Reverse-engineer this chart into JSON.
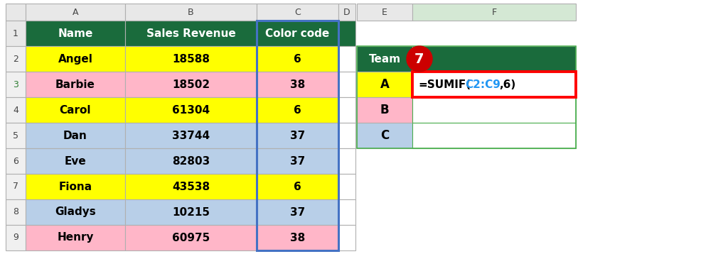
{
  "header_row": [
    "Name",
    "Sales Revenue",
    "Color code"
  ],
  "header_bg": "#1a6b3c",
  "header_fg": "#ffffff",
  "data_rows": [
    {
      "name": "Angel",
      "sales": "18588",
      "code": "6",
      "row_bg": "#ffff00"
    },
    {
      "name": "Barbie",
      "sales": "18502",
      "code": "38",
      "row_bg": "#ffb6c8"
    },
    {
      "name": "Carol",
      "sales": "61304",
      "code": "6",
      "row_bg": "#ffff00"
    },
    {
      "name": "Dan",
      "sales": "33744",
      "code": "37",
      "row_bg": "#b8cfe8"
    },
    {
      "name": "Eve",
      "sales": "82803",
      "code": "37",
      "row_bg": "#b8cfe8"
    },
    {
      "name": "Fiona",
      "sales": "43538",
      "code": "6",
      "row_bg": "#ffff00"
    },
    {
      "name": "Gladys",
      "sales": "10215",
      "code": "37",
      "row_bg": "#b8cfe8"
    },
    {
      "name": "Henry",
      "sales": "60975",
      "code": "38",
      "row_bg": "#ffb6c8"
    }
  ],
  "side_table_header": "Team",
  "side_table_header_bg": "#1a6b3c",
  "side_table_header_fg": "#ffffff",
  "side_rows": [
    {
      "label": "A",
      "bg": "#ffff00"
    },
    {
      "label": "B",
      "bg": "#ffb6c8"
    },
    {
      "label": "C",
      "bg": "#b8cfe8"
    }
  ],
  "col_letters_bg": "#e8e8e8",
  "col_f_selected_bg": "#d4e8d4",
  "row_num_bg": "#f0f0f0",
  "grid_color": "#b0b0b0",
  "green_border": "#4caf50",
  "blue_border": "#4472c4",
  "red_border": "#ff0000",
  "page_bg": "#ffffff",
  "formula_parts": [
    {
      "text": "=SUMIF(",
      "color": "#000000"
    },
    {
      "text": "C2:C9",
      "color": "#2196f3"
    },
    {
      "text": ",6)",
      "color": "#000000"
    }
  ]
}
